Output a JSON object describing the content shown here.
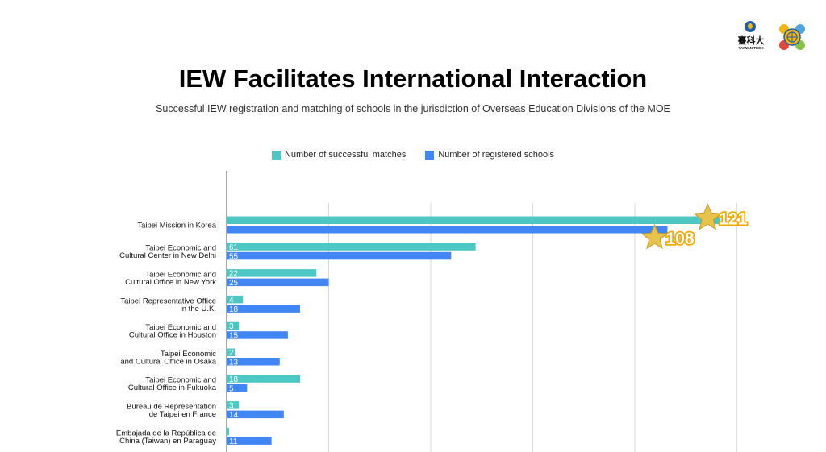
{
  "header": {
    "title": "IEW Facilitates International Interaction",
    "subtitle": "Successful IEW registration and matching of schools in the jurisdiction of Overseas Education Divisions of the MOE"
  },
  "logos": {
    "university_cn": "臺科大",
    "university_en": "TAIWAN TECH"
  },
  "colors": {
    "matches": "#4dc7c3",
    "registered": "#4285f4",
    "highlight": "#f2a900",
    "gridline": "#d9d9d9"
  },
  "chart_data": {
    "type": "bar",
    "orientation": "horizontal",
    "title": "IEW Facilitates International Interaction",
    "subtitle": "Successful IEW registration and matching of schools in the jurisdiction of Overseas Education Divisions of the MOE",
    "legend_position": "top",
    "grid": true,
    "xlim": [
      0,
      125
    ],
    "categories": [
      [
        "Taipei Mission in Korea"
      ],
      [
        "Taipei Economic and",
        "Cultural Center in New Delhi"
      ],
      [
        "Taipei Economic and",
        "Cultural Office in New York"
      ],
      [
        "Taipei Representative Office",
        "in the U.K."
      ],
      [
        "Taipei Economic and",
        "Cultural Office in Houston"
      ],
      [
        "Taipei Economic",
        "and Cultural Office in Osaka"
      ],
      [
        "Taipei Economic and",
        "Cultural Office in Fukuoka"
      ],
      [
        "Bureau de Representation",
        "de Taipei en France"
      ],
      [
        "Embajada de la República de",
        "China (Taiwan) en Paraguay"
      ]
    ],
    "series": [
      {
        "name": "Number of successful matches",
        "values": [
          121,
          61,
          22,
          4,
          3,
          2,
          18,
          3,
          0
        ],
        "labels": [
          "121",
          "61",
          "22",
          "4",
          "3",
          "2",
          "18",
          "3",
          "0"
        ]
      },
      {
        "name": "Number of registered schools",
        "values": [
          108,
          55,
          25,
          18,
          15,
          13,
          5,
          14,
          11
        ],
        "labels": [
          "108",
          "55",
          "25",
          "18",
          "15",
          "13",
          "5",
          "14",
          "11"
        ]
      }
    ]
  }
}
